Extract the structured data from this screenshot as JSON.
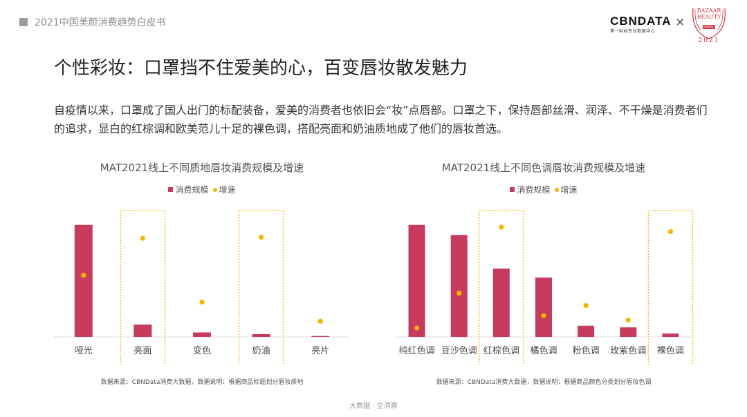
{
  "header": {
    "report_title": "2021中国美颜消费趋势白皮书"
  },
  "logos": {
    "cbndata": "CBNDATA",
    "cbndata_sub": "第一财经专业数据中心",
    "times": "×",
    "bazaar_top": "BAZAAR",
    "bazaar_mid": "BEAUTY",
    "bazaar_award": "AWARD",
    "bazaar_year": "2021"
  },
  "title": "个性彩妆：口罩挡不住爱美的心，百变唇妆散发魅力",
  "description": "自疫情以来，口罩成了国人出门的标配装备，爱美的消费者也依旧会“妆”点唇部。口罩之下，保持唇部丝滑、润泽、不干燥是消费者们的追求，显白的红棕调和欧美范儿十足的裸色调，搭配亮面和奶油质地成了他们的唇妆首选。",
  "colors": {
    "bar": "#c73b5d",
    "dot": "#f4b400",
    "highlight": "#f4b400",
    "axis": "#dddddd"
  },
  "chart_data": [
    {
      "type": "bar",
      "title": "MAT2021线上不同质地唇妆消费规模及增速",
      "categories": [
        "哑光",
        "亮面",
        "变色",
        "奶油",
        "亮片"
      ],
      "highlighted": [
        "亮面",
        "奶油"
      ],
      "series": [
        {
          "name": "消费规模",
          "kind": "bar",
          "values": [
            100,
            11,
            4,
            2.5,
            0.8
          ]
        },
        {
          "name": "增速",
          "kind": "dot",
          "values": [
            55,
            88,
            31,
            89,
            14
          ]
        }
      ],
      "ylim": [
        0,
        106
      ],
      "source_note": "数据来源：CBNData消费大数据，数据说明：根据商品标题划分唇妆质地"
    },
    {
      "type": "bar",
      "title": "MAT2021线上不同色调唇妆消费规模及增速",
      "categories": [
        "纯红色调",
        "豆沙色调",
        "红棕色调",
        "橘色调",
        "粉色调",
        "玫紫色调",
        "裸色调"
      ],
      "highlighted": [
        "红棕色调",
        "裸色调"
      ],
      "series": [
        {
          "name": "消费规模",
          "kind": "bar",
          "values": [
            100,
            91,
            61,
            53,
            10,
            8.5,
            3
          ]
        },
        {
          "name": "增速",
          "kind": "dot",
          "values": [
            8,
            39,
            98,
            19,
            28,
            15,
            94
          ]
        }
      ],
      "ylim": [
        0,
        106
      ],
      "source_note": "数据来源：CBNData消费大数据，数据说明：根据商品颜色分类划分唇妆色调"
    }
  ],
  "footer": "大数据 · 全洞察"
}
